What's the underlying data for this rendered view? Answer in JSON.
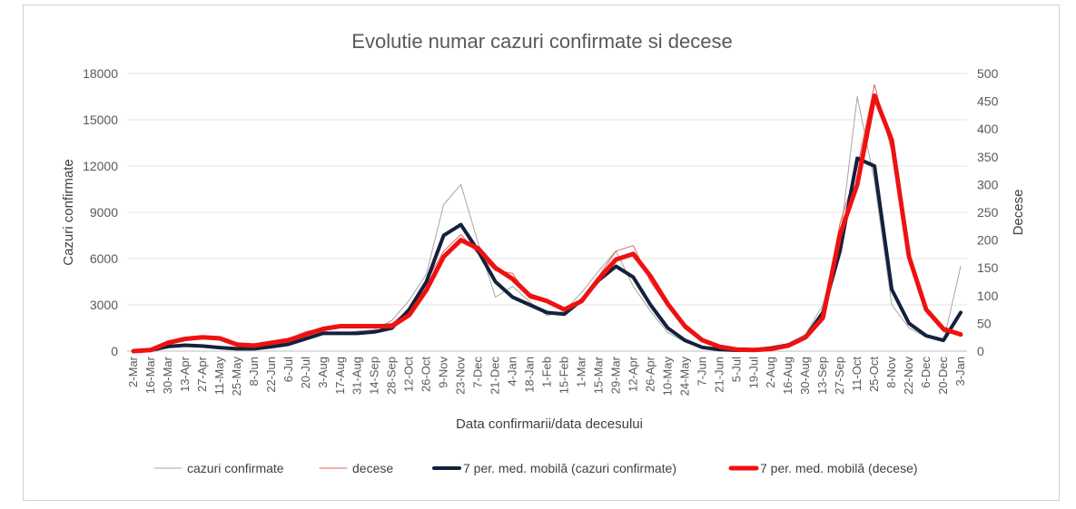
{
  "chart_data": {
    "type": "line",
    "title": "Evolutie numar cazuri confirmate si decese",
    "xlabel": "Data confirmarii/data decesului",
    "ylabel": "Cazuri confirmate",
    "y2label": "Decese",
    "ylim": [
      0,
      18000
    ],
    "y2lim": [
      0,
      500
    ],
    "yticks": [
      0,
      3000,
      6000,
      9000,
      12000,
      15000,
      18000
    ],
    "y2ticks": [
      0,
      50,
      100,
      150,
      200,
      250,
      300,
      350,
      400,
      450,
      500
    ],
    "grid": true,
    "legend_position": "bottom",
    "x": [
      "2-Mar",
      "16-Mar",
      "30-Mar",
      "13-Apr",
      "27-Apr",
      "11-May",
      "25-May",
      "8-Jun",
      "22-Jun",
      "6-Jul",
      "20-Jul",
      "3-Aug",
      "17-Aug",
      "31-Aug",
      "14-Sep",
      "28-Sep",
      "12-Oct",
      "26-Oct",
      "9-Nov",
      "23-Nov",
      "7-Dec",
      "21-Dec",
      "4-Jan",
      "18-Jan",
      "1-Feb",
      "15-Feb",
      "1-Mar",
      "15-Mar",
      "29-Mar",
      "12-Apr",
      "26-Apr",
      "10-May",
      "24-May",
      "7-Jun",
      "21-Jun",
      "5-Jul",
      "19-Jul",
      "2-Aug",
      "16-Aug",
      "30-Aug",
      "13-Sep",
      "27-Sep",
      "11-Oct",
      "25-Oct",
      "8-Nov",
      "22-Nov",
      "6-Dec",
      "20-Dec",
      "3-Jan"
    ],
    "series": [
      {
        "name": "cazuri confirmate",
        "axis": "left",
        "color": "#a6a6a6",
        "width": 1,
        "values": [
          0,
          80,
          350,
          420,
          300,
          250,
          120,
          200,
          320,
          500,
          1000,
          1300,
          1100,
          1300,
          1400,
          2000,
          3300,
          5000,
          9500,
          10800,
          7000,
          3500,
          4200,
          3200,
          2300,
          2600,
          3800,
          5200,
          6500,
          4200,
          2600,
          1200,
          600,
          200,
          90,
          50,
          70,
          250,
          500,
          1100,
          3000,
          7200,
          16500,
          11000,
          3000,
          1500,
          900,
          600,
          5500
        ]
      },
      {
        "name": "decese",
        "axis": "right",
        "color": "#e06060",
        "width": 1,
        "values": [
          0,
          3,
          18,
          25,
          27,
          20,
          10,
          12,
          18,
          22,
          35,
          42,
          48,
          44,
          47,
          50,
          75,
          125,
          180,
          210,
          175,
          145,
          140,
          95,
          88,
          72,
          95,
          135,
          180,
          190,
          125,
          80,
          40,
          18,
          7,
          3,
          2,
          4,
          11,
          28,
          70,
          230,
          330,
          480,
          360,
          160,
          70,
          35,
          28
        ]
      },
      {
        "name": "7 per. med. mobilă (cazuri confirmate)",
        "axis": "left",
        "color": "#14213d",
        "width": 4,
        "values": [
          0,
          50,
          300,
          380,
          330,
          230,
          150,
          150,
          280,
          450,
          800,
          1150,
          1150,
          1150,
          1250,
          1500,
          2700,
          4500,
          7500,
          8200,
          6500,
          4500,
          3500,
          3000,
          2500,
          2400,
          3300,
          4600,
          5500,
          4800,
          3000,
          1500,
          700,
          250,
          100,
          60,
          80,
          200,
          400,
          900,
          2500,
          6500,
          12500,
          12000,
          4000,
          1800,
          1000,
          700,
          2500
        ]
      },
      {
        "name": "7 per. med. mobilă (decese)",
        "axis": "right",
        "color": "#ee1111",
        "width": 5,
        "values": [
          0,
          2,
          15,
          22,
          25,
          23,
          12,
          10,
          15,
          20,
          30,
          40,
          45,
          45,
          45,
          45,
          65,
          110,
          170,
          200,
          185,
          150,
          130,
          100,
          90,
          75,
          90,
          130,
          165,
          175,
          135,
          85,
          45,
          20,
          8,
          3,
          2,
          4,
          10,
          25,
          60,
          210,
          300,
          460,
          380,
          170,
          75,
          40,
          30
        ]
      }
    ]
  }
}
